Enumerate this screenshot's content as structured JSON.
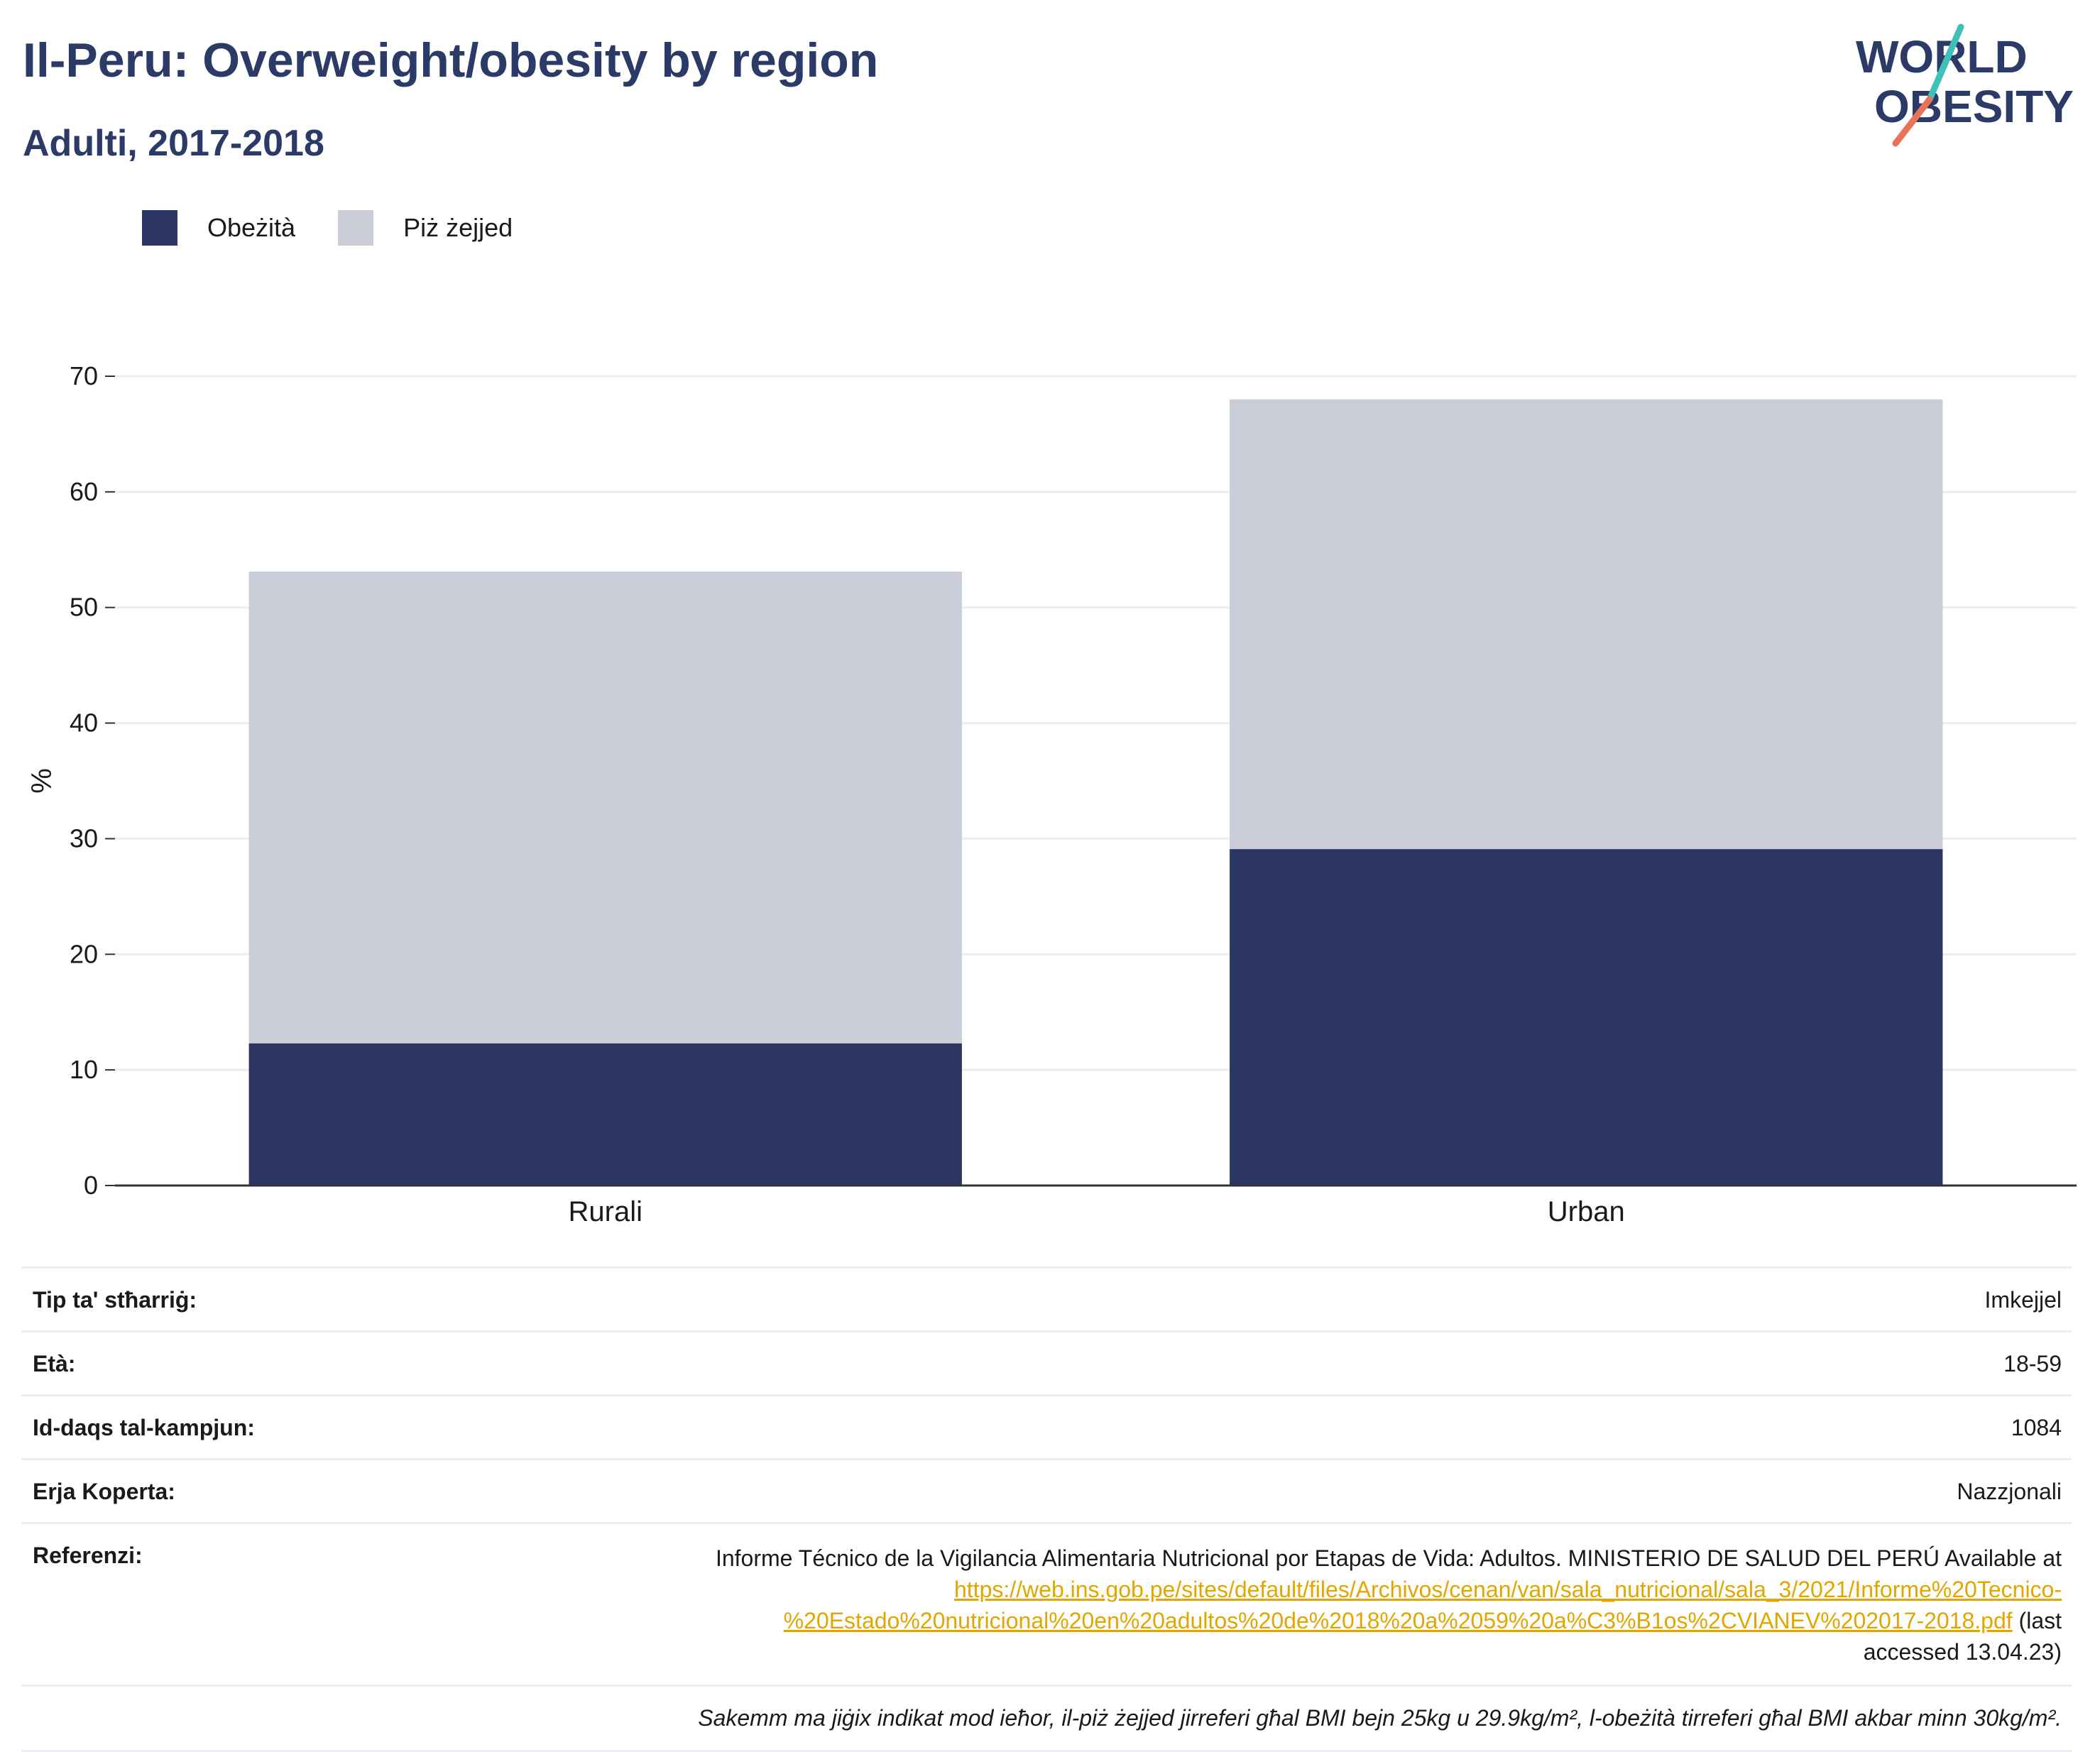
{
  "header": {
    "title": "Il-Peru: Overweight/obesity by region",
    "subtitle": "Adulti, 2017-2018"
  },
  "logo": {
    "line1": "WORLD",
    "line2": "OBESITY",
    "colors": {
      "text": "#2b3a67",
      "slash_top": "#3ec1b9",
      "slash_bottom": "#e8735a"
    }
  },
  "colors": {
    "obesity": "#2b3663",
    "overweight": "#cacdd8",
    "title": "#2b3a67",
    "grid": "#ececf2",
    "axis": "#333333",
    "link": "#e3a600"
  },
  "legend": {
    "items": [
      {
        "label": "Obeżità",
        "color": "#2b3663"
      },
      {
        "label": "Piż żejjed",
        "color": "#cacdd8"
      }
    ]
  },
  "chart_data": {
    "type": "bar",
    "stacked": true,
    "categories": [
      "Rurali",
      "Urban"
    ],
    "series": [
      {
        "name": "Obeżità",
        "values": [
          12.3,
          29.1
        ]
      },
      {
        "name": "Piż żejjed",
        "values": [
          40.8,
          38.9
        ]
      }
    ],
    "totals": [
      53.1,
      68.0
    ],
    "ylabel": "%",
    "xlabel": "",
    "ylim": [
      0,
      70
    ],
    "yticks": [
      0,
      10,
      20,
      30,
      40,
      50,
      60,
      70
    ],
    "grid": true,
    "legend_position": "top-left"
  },
  "meta": {
    "rows": [
      {
        "key": "Tip ta' stħarriġ:",
        "value": "Imkejjel"
      },
      {
        "key": "Età:",
        "value": "18-59"
      },
      {
        "key": "Id-daqs tal-kampjun:",
        "value": "1084"
      },
      {
        "key": "Erja Koperta:",
        "value": "Nazzjonali"
      }
    ],
    "reference": {
      "key": "Referenzi:",
      "text": "Informe Técnico de la Vigilancia Alimentaria Nutricional por Etapas de Vida: Adultos. MINISTERIO DE SALUD DEL PERÚ Available at",
      "link_line1": "https://web.ins.gob.pe/sites/default/files/Archivos/cenan/van/sala_nutricional/sala_3/2021/Informe%20Tecnico-",
      "link_line2": "%20Estado%20nutricional%20en%20adultos%20de%2018%20a%2059%20a%C3%B1os%2CVIANEV%202017-2018.pdf",
      "after_link": " (last",
      "accessed": "accessed 13.04.23)"
    },
    "note": "Sakemm ma jiġix indikat mod ieħor, il-piż żejjed jirreferi għal BMI bejn 25kg u 29.9kg/m², l-obeżità tirreferi għal BMI akbar minn 30kg/m²."
  }
}
